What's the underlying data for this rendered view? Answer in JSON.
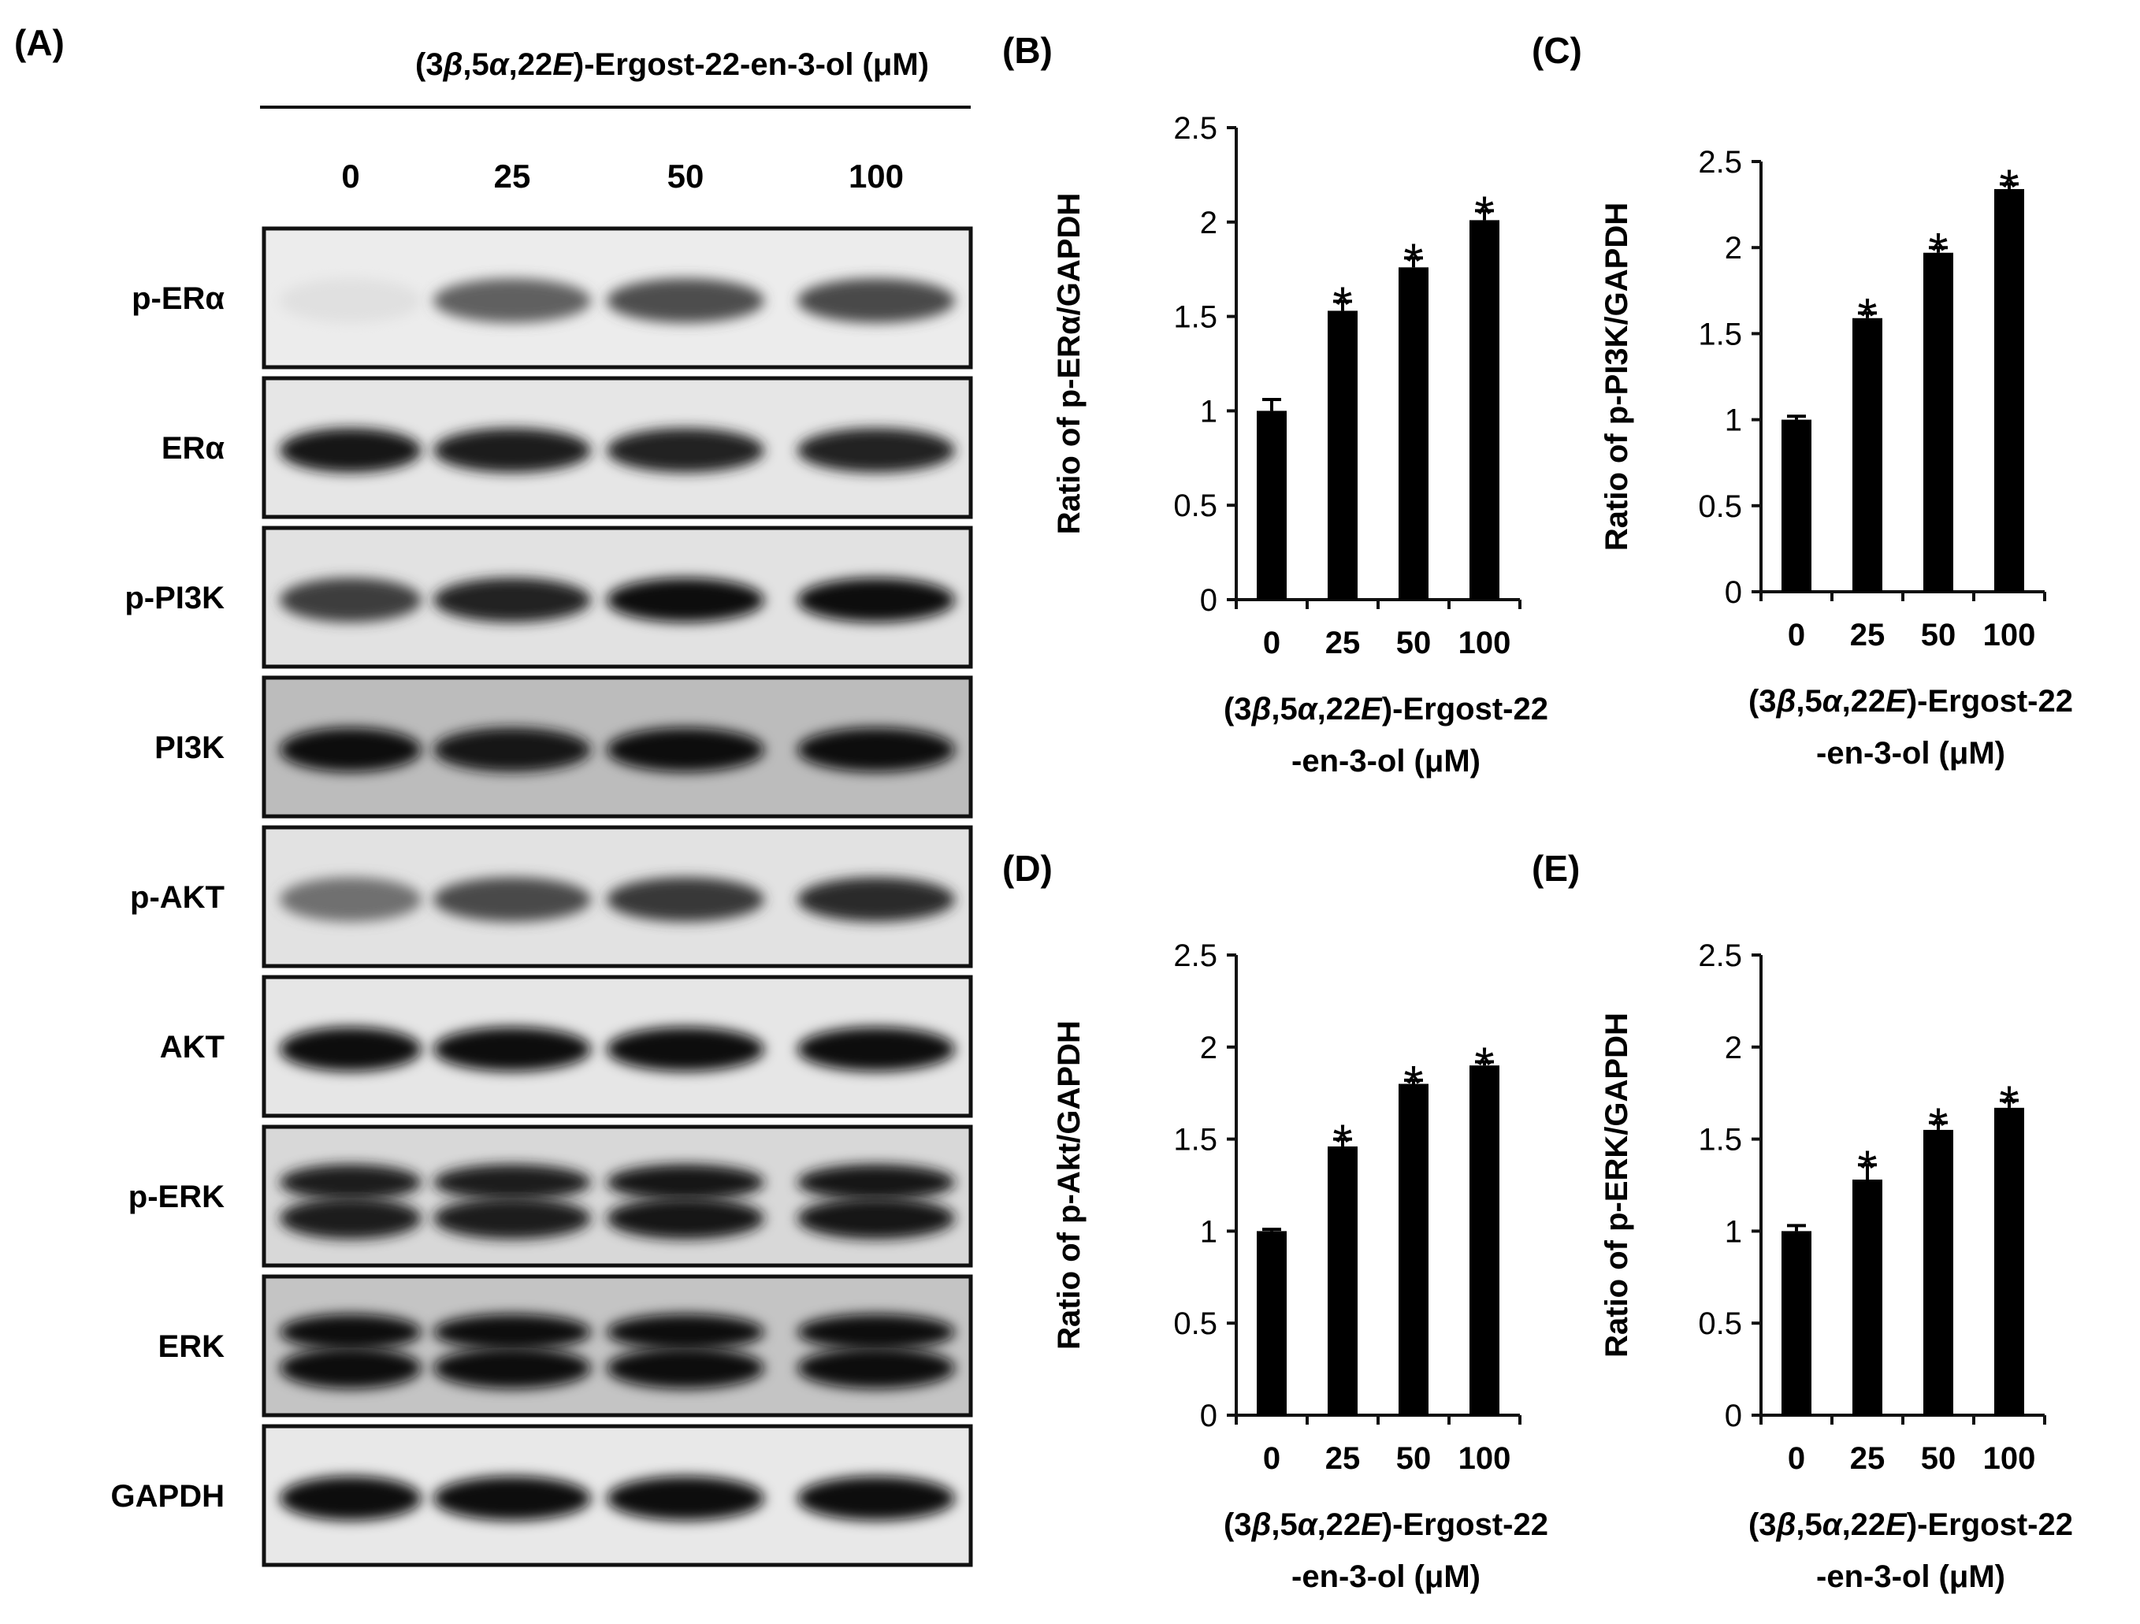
{
  "figure": {
    "panel_labels": [
      "(A)",
      "(B)",
      "(C)",
      "(D)",
      "(E)"
    ]
  },
  "western_blot": {
    "header": {
      "prefix": "(3",
      "beta": "β",
      "mid1": ",5",
      "alpha": "α",
      "mid2": ",22",
      "e": "E",
      "suffix": ")-Ergost-22-en-3-ol (μM)"
    },
    "lanes": [
      "0",
      "25",
      "50",
      "100"
    ],
    "rows": [
      {
        "label": "p-ERα",
        "bg": "#ececec",
        "upper": false,
        "lower": false,
        "intensity": [
          0.05,
          0.62,
          0.7,
          0.72
        ]
      },
      {
        "label": "ERα",
        "bg": "#e6e6e6",
        "upper": false,
        "lower": false,
        "intensity": [
          0.95,
          0.92,
          0.9,
          0.9
        ]
      },
      {
        "label": "p-PI3K",
        "bg": "#e2e2e2",
        "upper": false,
        "lower": false,
        "intensity": [
          0.78,
          0.9,
          0.97,
          0.98
        ]
      },
      {
        "label": "PI3K",
        "bg": "#bcbcbc",
        "upper": false,
        "lower": false,
        "intensity": [
          1.0,
          0.95,
          1.0,
          1.0
        ]
      },
      {
        "label": "p-AKT",
        "bg": "#e2e2e2",
        "upper": false,
        "lower": false,
        "intensity": [
          0.55,
          0.72,
          0.8,
          0.85
        ]
      },
      {
        "label": "AKT",
        "bg": "#e6e6e6",
        "upper": false,
        "lower": false,
        "intensity": [
          1.0,
          1.0,
          1.0,
          1.0
        ]
      },
      {
        "label": "p-ERK",
        "bg": "#d8d8d8",
        "upper": true,
        "lower": true,
        "intensity": [
          0.92,
          0.92,
          0.94,
          0.94
        ]
      },
      {
        "label": "ERK",
        "bg": "#c4c4c4",
        "upper": true,
        "lower": true,
        "intensity": [
          1.0,
          1.0,
          1.0,
          1.0
        ]
      },
      {
        "label": "GAPDH",
        "bg": "#e8e8e8",
        "upper": false,
        "lower": false,
        "intensity": [
          1.0,
          1.0,
          1.0,
          1.0
        ]
      }
    ]
  },
  "xaxis_title": {
    "line1_prefix": "(3",
    "beta": "β",
    "mid1": ",5",
    "alpha": "α",
    "mid2": ",22",
    "e": "E",
    "line1_suffix": ")-Ergost-22",
    "line2": "-en-3-ol (μM)"
  },
  "chart_data": [
    {
      "panel": "(B)",
      "type": "bar",
      "ylabel": "Ratio of p-ERα/GAPDH",
      "categories": [
        "0",
        "25",
        "50",
        "100"
      ],
      "values": [
        1.0,
        1.53,
        1.76,
        2.01
      ],
      "errors": [
        0.06,
        0.05,
        0.05,
        0.05
      ],
      "significant": [
        false,
        true,
        true,
        true
      ],
      "significance_marker": "*",
      "ylim": [
        0,
        2.5
      ],
      "yticks": [
        "0",
        "0.5",
        "1",
        "1.5",
        "2",
        "2.5"
      ]
    },
    {
      "panel": "(C)",
      "type": "bar",
      "ylabel": "Ratio of p-PI3K/GAPDH",
      "categories": [
        "0",
        "25",
        "50",
        "100"
      ],
      "values": [
        1.0,
        1.59,
        1.97,
        2.34
      ],
      "errors": [
        0.02,
        0.03,
        0.03,
        0.03
      ],
      "significant": [
        false,
        true,
        true,
        true
      ],
      "significance_marker": "*",
      "ylim": [
        0,
        2.5
      ],
      "yticks": [
        "0",
        "0.5",
        "1",
        "1.5",
        "2",
        "2.5"
      ]
    },
    {
      "panel": "(D)",
      "type": "bar",
      "ylabel": "Ratio of p-Akt/GAPDH",
      "categories": [
        "0",
        "25",
        "50",
        "100"
      ],
      "values": [
        1.0,
        1.46,
        1.8,
        1.9
      ],
      "errors": [
        0.01,
        0.04,
        0.02,
        0.02
      ],
      "significant": [
        false,
        true,
        true,
        true
      ],
      "significance_marker": "*",
      "ylim": [
        0,
        2.5
      ],
      "yticks": [
        "0",
        "0.5",
        "1",
        "1.5",
        "2",
        "2.5"
      ]
    },
    {
      "panel": "(E)",
      "type": "bar",
      "ylabel": "Ratio of p-ERK/GAPDH",
      "categories": [
        "0",
        "25",
        "50",
        "100"
      ],
      "values": [
        1.0,
        1.28,
        1.55,
        1.67
      ],
      "errors": [
        0.03,
        0.08,
        0.04,
        0.04
      ],
      "significant": [
        false,
        true,
        true,
        true
      ],
      "significance_marker": "*",
      "ylim": [
        0,
        2.5
      ],
      "yticks": [
        "0",
        "0.5",
        "1",
        "1.5",
        "2",
        "2.5"
      ]
    }
  ]
}
